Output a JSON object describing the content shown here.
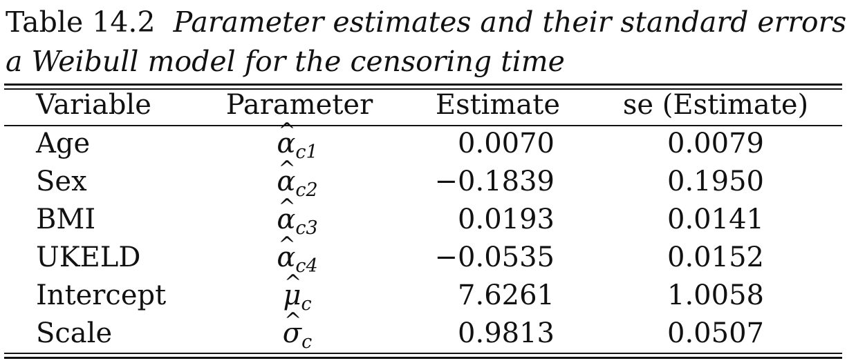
{
  "caption": {
    "number": "Table 14.2",
    "title": "Parameter estimates and their standard errors in a Weibull model for the censoring time",
    "line1": "Parameter estimates and their standard errors in",
    "line2": "a Weibull model for the censoring time"
  },
  "table": {
    "headers": {
      "variable": "Variable",
      "parameter": "Parameter",
      "estimate": "Estimate",
      "se": "se (Estimate)"
    },
    "rows": [
      {
        "variable": "Age",
        "param_symbol": "α",
        "param_hat": "^",
        "param_sub": "c1",
        "estimate": "0.0070",
        "se": "0.0079"
      },
      {
        "variable": "Sex",
        "param_symbol": "α",
        "param_hat": "^",
        "param_sub": "c2",
        "estimate": "−0.1839",
        "se": "0.1950"
      },
      {
        "variable": "BMI",
        "param_symbol": "α",
        "param_hat": "^",
        "param_sub": "c3",
        "estimate": "0.0193",
        "se": "0.0141"
      },
      {
        "variable": "UKELD",
        "param_symbol": "α",
        "param_hat": "^",
        "param_sub": "c4",
        "estimate": "−0.0535",
        "se": "0.0152"
      },
      {
        "variable": "Intercept",
        "param_symbol": "μ",
        "param_hat": "^",
        "param_sub": "c",
        "estimate": "7.6261",
        "se": "1.0058"
      },
      {
        "variable": "Scale",
        "param_symbol": "σ",
        "param_hat": "^",
        "param_sub": "c",
        "estimate": "0.9813",
        "se": "0.0507"
      }
    ]
  }
}
